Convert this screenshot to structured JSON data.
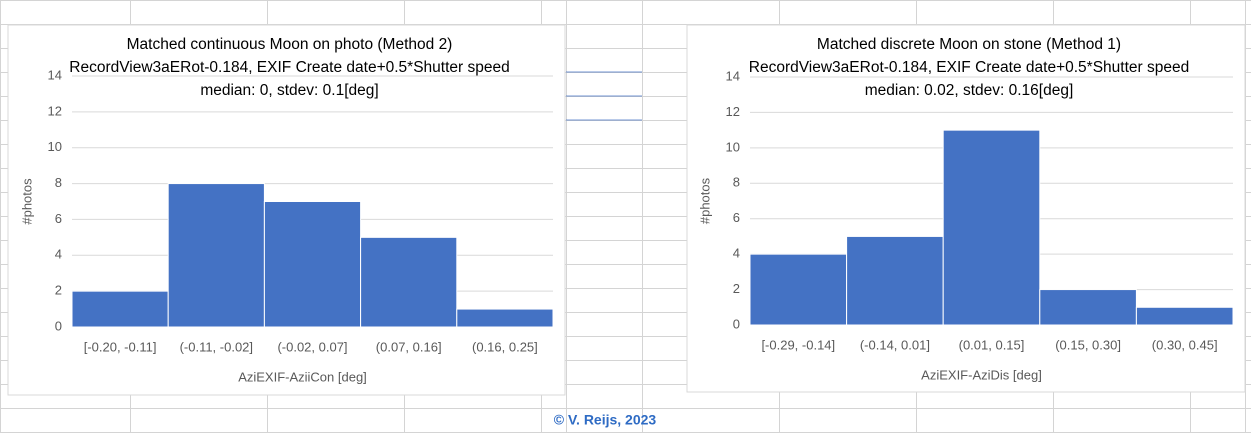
{
  "chart_data": [
    {
      "type": "bar",
      "title": [
        "Matched continuous Moon on photo (Method 2)",
        "RecordView3aERot-0.184, EXIF Create date+0.5*Shutter  speed",
        "median: 0, stdev: 0.1[deg]"
      ],
      "categories": [
        "[-0.20, -0.11]",
        "(-0.11, -0.02]",
        "(-0.02, 0.07]",
        "(0.07, 0.16]",
        "(0.16, 0.25]"
      ],
      "values": [
        2,
        8,
        7,
        5,
        1
      ],
      "color": "#4472c4",
      "x_label": "AziEXIF-AziiCon [deg]",
      "y_label": "#photos",
      "ylim": [
        0,
        14
      ],
      "yticks": [
        0,
        2,
        4,
        6,
        8,
        10,
        12,
        14
      ],
      "grid": true
    },
    {
      "type": "bar",
      "title": [
        "Matched discrete Moon on stone (Method 1)",
        "RecordView3aERot-0.184, EXIF Create date+0.5*Shutter  speed",
        "median: 0.02, stdev: 0.16[deg]"
      ],
      "categories": [
        "[-0.29, -0.14]",
        "(-0.14, 0.01]",
        "(0.01, 0.15]",
        "(0.15, 0.30]",
        "(0.30, 0.45]"
      ],
      "values": [
        4,
        5,
        11,
        2,
        1
      ],
      "color": "#4472c4",
      "x_label": "AziEXIF-AziDis [deg]",
      "y_label": "#photos",
      "ylim": [
        0,
        14
      ],
      "yticks": [
        0,
        2,
        4,
        6,
        8,
        10,
        12,
        14
      ],
      "grid": true
    }
  ],
  "footer": "© V. Reijs, 2023"
}
